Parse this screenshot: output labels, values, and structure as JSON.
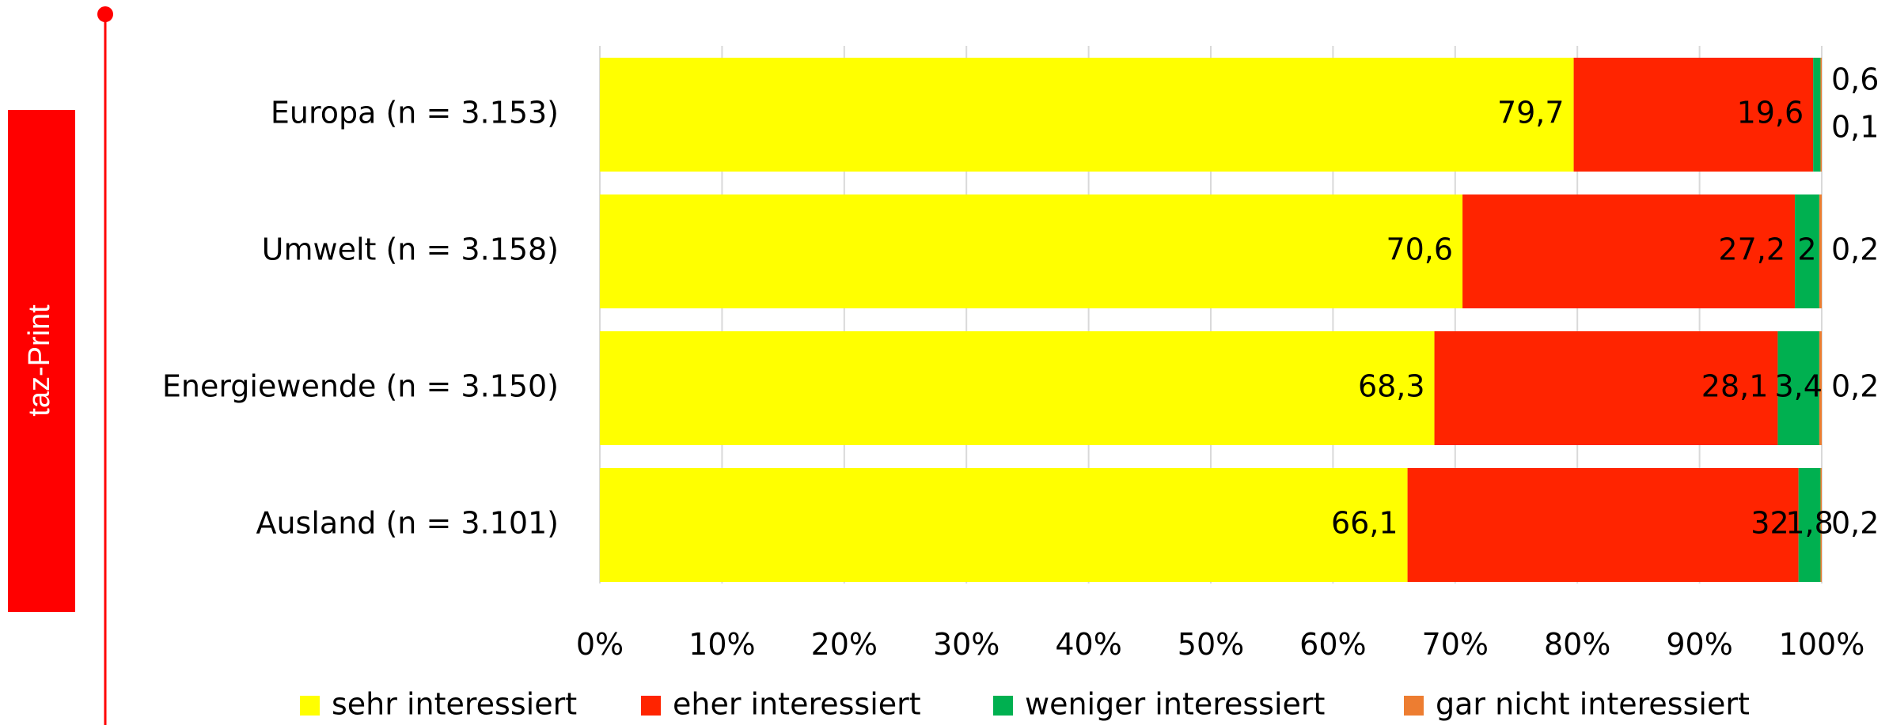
{
  "side_tab": {
    "label": "taz-Print",
    "color": "#ff0000"
  },
  "chart_data": {
    "type": "bar",
    "orientation": "horizontal",
    "stacked": "percent",
    "title": "",
    "xlabel": "",
    "ylabel": "",
    "xlim": [
      0,
      100
    ],
    "grid": true,
    "legend_position": "bottom",
    "tick_labels": [
      "0%",
      "10%",
      "20%",
      "30%",
      "40%",
      "50%",
      "60%",
      "70%",
      "80%",
      "90%",
      "100%"
    ],
    "categories": [
      "Europa (n = 3.153)",
      "Umwelt (n = 3.158)",
      "Energiewende (n = 3.150)",
      "Ausland (n = 3.101)"
    ],
    "series": [
      {
        "name": "sehr interessiert",
        "color": "#ffff00",
        "values": [
          79.7,
          70.6,
          68.3,
          66.1
        ],
        "labels": [
          "79,7",
          "70,6",
          "68,3",
          "66,1"
        ]
      },
      {
        "name": "eher interessiert",
        "color": "#ff2400",
        "values": [
          19.6,
          27.2,
          28.1,
          32
        ],
        "labels": [
          "19,6",
          "27,2",
          "28,1",
          "32"
        ]
      },
      {
        "name": "weniger interessiert",
        "color": "#00b050",
        "values": [
          0.6,
          2,
          3.4,
          1.8
        ],
        "labels": [
          "0,6",
          "2",
          "3,4",
          "1,8"
        ]
      },
      {
        "name": "gar nicht interessiert",
        "color": "#ed7d31",
        "values": [
          0.1,
          0.2,
          0.2,
          0.2
        ],
        "labels": [
          "0,1",
          "0,2",
          "0,2",
          "0,2"
        ]
      }
    ]
  }
}
